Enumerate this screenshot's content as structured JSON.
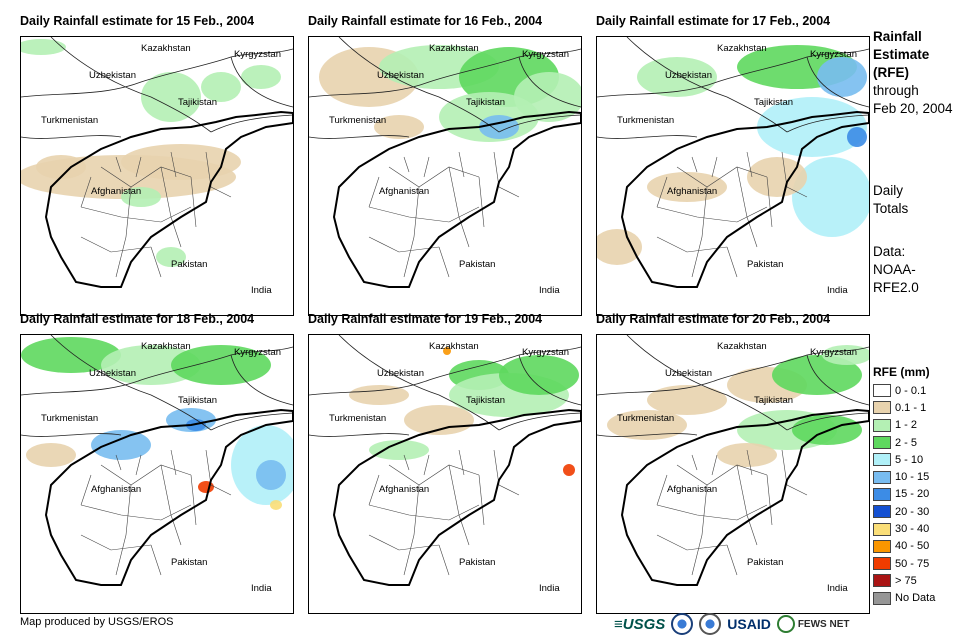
{
  "panels": [
    {
      "title": "Daily Rainfall estimate for 15 Feb., 2004",
      "day": 15
    },
    {
      "title": "Daily Rainfall estimate for 16 Feb., 2004",
      "day": 16
    },
    {
      "title": "Daily Rainfall estimate for 17 Feb., 2004",
      "day": 17
    },
    {
      "title": "Daily Rainfall estimate for 18 Feb., 2004",
      "day": 18
    },
    {
      "title": "Daily Rainfall estimate for 19 Feb., 2004",
      "day": 19
    },
    {
      "title": "Daily Rainfall estimate for 20 Feb., 2004",
      "day": 20
    }
  ],
  "map_labels": {
    "kazakhstan": "Kazakhstan",
    "kyrgyzstan": "Kyrgyzstan",
    "uzbekistan": "Uzbekistan",
    "tajikistan": "Tajikistan",
    "turkmenistan": "Turkmenistan",
    "afghanistan": "Afghanistan",
    "pakistan": "Pakistan",
    "india": "India"
  },
  "side": {
    "title_lines": [
      "Rainfall",
      "Estimate",
      "(RFE)"
    ],
    "through": "through",
    "date": "Feb 20, 2004",
    "daily": "Daily",
    "totals": "Totals",
    "data_label": "Data:",
    "data_source_1": "NOAA-",
    "data_source_2": "RFE2.0"
  },
  "legend": {
    "title": "RFE (mm)",
    "items": [
      {
        "label": "0 - 0.1",
        "color": "#ffffff"
      },
      {
        "label": "0.1 - 1",
        "color": "#e8d3ae"
      },
      {
        "label": "1 - 2",
        "color": "#b4f0b4"
      },
      {
        "label": "2 - 5",
        "color": "#5ed85e"
      },
      {
        "label": "5 - 10",
        "color": "#b0f0f8"
      },
      {
        "label": "10 - 15",
        "color": "#78bcf0"
      },
      {
        "label": "15 - 20",
        "color": "#3c8ce6"
      },
      {
        "label": "20 - 30",
        "color": "#1450d2"
      },
      {
        "label": "30 - 40",
        "color": "#fade78"
      },
      {
        "label": "40 - 50",
        "color": "#fa9600"
      },
      {
        "label": "50 - 75",
        "color": "#f03c00"
      },
      {
        "label": "> 75",
        "color": "#aa1414"
      },
      {
        "label": "No Data",
        "color": "#969696"
      }
    ]
  },
  "credit": "Map produced by USGS/EROS",
  "logos": {
    "usgs": "≡USGS",
    "usaid": "USAID",
    "fews": "FEWS NET"
  }
}
